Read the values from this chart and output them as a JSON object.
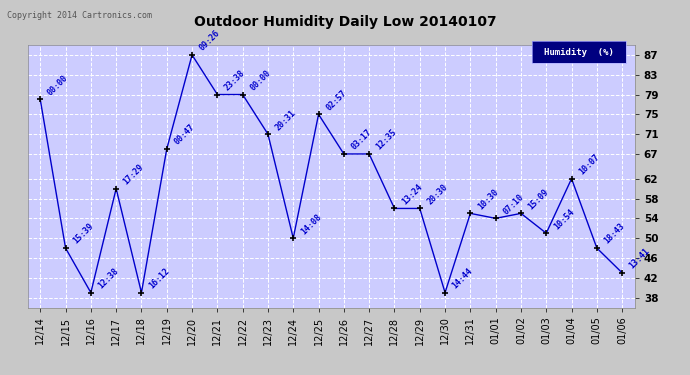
{
  "title": "Outdoor Humidity Daily Low 20140107",
  "copyright": "Copyright 2014 Cartronics.com",
  "legend_label": "Humidity  (%)",
  "x_labels": [
    "12/14",
    "12/15",
    "12/16",
    "12/17",
    "12/18",
    "12/19",
    "12/20",
    "12/21",
    "12/22",
    "12/23",
    "12/24",
    "12/25",
    "12/26",
    "12/27",
    "12/28",
    "12/29",
    "12/30",
    "12/31",
    "01/01",
    "01/02",
    "01/03",
    "01/04",
    "01/05",
    "01/06"
  ],
  "y_values": [
    78,
    48,
    39,
    60,
    39,
    68,
    87,
    79,
    79,
    71,
    50,
    75,
    67,
    67,
    56,
    56,
    39,
    55,
    54,
    55,
    51,
    62,
    48,
    43
  ],
  "time_labels": [
    "00:00",
    "15:39",
    "12:38",
    "17:29",
    "16:12",
    "00:47",
    "09:26",
    "23:38",
    "00:00",
    "20:31",
    "14:08",
    "02:57",
    "03:17",
    "12:35",
    "13:24",
    "20:30",
    "14:44",
    "10:30",
    "07:10",
    "15:09",
    "10:54",
    "10:07",
    "18:43",
    "13:41"
  ],
  "ylim": [
    36,
    89
  ],
  "yticks": [
    38,
    42,
    46,
    50,
    54,
    58,
    62,
    67,
    71,
    75,
    79,
    83,
    87
  ],
  "line_color": "#0000cc",
  "marker_color": "#000000",
  "bg_color": "#c8c8c8",
  "plot_bg_color": "#ccccff",
  "grid_color": "#ffffff",
  "title_color": "#000000",
  "label_color": "#0000cc",
  "legend_bg": "#000080",
  "legend_text_color": "#ffffff",
  "copyright_color": "#555555"
}
